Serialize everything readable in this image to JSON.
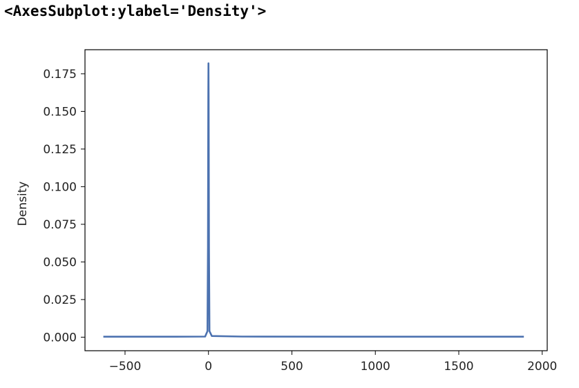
{
  "output_repr": "<AxesSubplot:ylabel='Density'>",
  "chart_data": {
    "type": "line",
    "title": "",
    "xlabel": "",
    "ylabel": "Density",
    "xlim": [
      -740,
      2030
    ],
    "ylim": [
      -0.009,
      0.191
    ],
    "xticks": [
      -500,
      0,
      500,
      1000,
      1500,
      2000
    ],
    "xtick_labels": [
      "−500",
      "0",
      "500",
      "1000",
      "1500",
      "2000"
    ],
    "yticks": [
      0.0,
      0.025,
      0.05,
      0.075,
      0.1,
      0.125,
      0.15,
      0.175
    ],
    "ytick_labels": [
      "0.000",
      "0.025",
      "0.050",
      "0.075",
      "0.100",
      "0.125",
      "0.150",
      "0.175"
    ],
    "grid": false,
    "color": "#4c72b0",
    "series": [
      {
        "x": [
          -630,
          -200,
          -20,
          -6,
          -3,
          -1,
          0,
          1,
          3,
          6,
          20,
          200,
          1000,
          1890
        ],
        "values": [
          0.0003,
          0.0003,
          0.0004,
          0.004,
          0.06,
          0.16,
          0.182,
          0.16,
          0.06,
          0.004,
          0.0008,
          0.0004,
          0.0003,
          0.0003
        ]
      }
    ]
  }
}
